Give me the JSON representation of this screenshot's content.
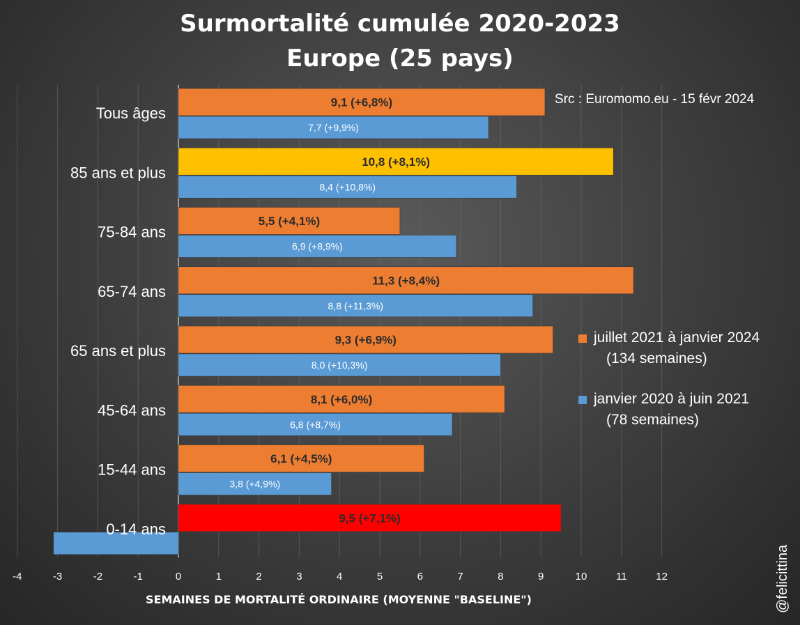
{
  "chart_data": {
    "type": "bar",
    "orientation": "horizontal",
    "title": "Surmortalité cumulée 2020-2023",
    "subtitle": "Europe (25 pays)",
    "source": "Src : Euromomo.eu  - 15 févr 2024",
    "xlabel": "SEMAINES DE MORTALITÉ ORDINAIRE (MOYENNE \"BASELINE\")",
    "ylabel": "",
    "xlim": [
      -4,
      12
    ],
    "xticks": [
      "-4",
      "-3",
      "-2",
      "-1",
      "0",
      "1",
      "2",
      "3",
      "4",
      "5",
      "6",
      "7",
      "8",
      "9",
      "10",
      "11",
      "12"
    ],
    "grid": true,
    "legend_position": "right",
    "categories": [
      "Tous âges",
      "85 ans et plus",
      "75-84 ans",
      "65-74 ans",
      "65 ans et plus",
      "45-64 ans",
      "15-44 ans",
      "0-14 ans"
    ],
    "series": [
      {
        "name": "juillet 2021 à janvier 2024",
        "name_sub": "(134 semaines)",
        "color": "#ed7d31",
        "values": [
          9.1,
          10.8,
          5.5,
          11.3,
          9.3,
          8.1,
          6.1,
          9.5
        ],
        "labels": [
          "9,1 (+6,8%)",
          "10,8 (+8,1%)",
          "5,5 (+4,1%)",
          "11,3 (+8,4%)",
          "9,3 (+6,9%)",
          "8,1 (+6,0%)",
          "6,1 (+4,5%)",
          "9,5 (+7,1%)"
        ],
        "colors": [
          "#ed7d31",
          "#ffc000",
          "#ed7d31",
          "#ed7d31",
          "#ed7d31",
          "#ed7d31",
          "#ed7d31",
          "#ff0000"
        ]
      },
      {
        "name": "janvier 2020 à juin 2021",
        "name_sub": "(78 semaines)",
        "color": "#5b9bd5",
        "values": [
          7.7,
          8.4,
          6.9,
          8.8,
          8.0,
          6.8,
          3.8,
          -3.1
        ],
        "labels": [
          "7,7 (+9,9%)",
          "8,4 (+10,8%)",
          "6,9 (+8,9%)",
          "8,8 (+11,3%)",
          "8,0 (+10,3%)",
          "6,8 (+8,7%)",
          "3,8 (+4,9%)",
          ""
        ],
        "colors": [
          "#5b9bd5",
          "#5b9bd5",
          "#5b9bd5",
          "#5b9bd5",
          "#5b9bd5",
          "#5b9bd5",
          "#5b9bd5",
          "#5b9bd5"
        ]
      }
    ]
  },
  "watermark": "@felicittina"
}
